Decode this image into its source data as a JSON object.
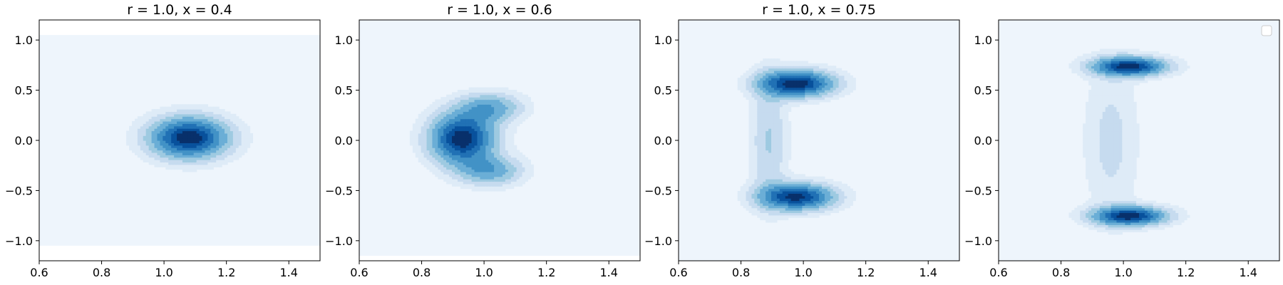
{
  "chart_data": [
    {
      "type": "contour",
      "title": "r = 1.0, x = 0.4",
      "xlabel": "",
      "ylabel": "",
      "xlim": [
        0.6,
        1.5
      ],
      "ylim": [
        -1.2,
        1.2
      ],
      "x_ticks": [
        "0.6",
        "0.8",
        "1.0",
        "1.2",
        "1.4"
      ],
      "y_ticks": [
        "−1.0",
        "−0.5",
        "0.0",
        "0.5",
        "1.0"
      ],
      "colormap": "Blues",
      "peaks": [
        {
          "x": 1.08,
          "y": 0.03,
          "sx": 0.085,
          "sy": 0.14,
          "amp": 1.0
        }
      ],
      "background_region": {
        "x": [
          0.6,
          1.5
        ],
        "y": [
          -1.05,
          1.05
        ]
      },
      "legend": false
    },
    {
      "type": "contour",
      "title": "r = 1.0, x = 0.6",
      "xlabel": "",
      "ylabel": "",
      "xlim": [
        0.6,
        1.5
      ],
      "ylim": [
        -1.2,
        1.2
      ],
      "x_ticks": [
        "0.6",
        "0.8",
        "1.0",
        "1.2",
        "1.4"
      ],
      "y_ticks": [
        "−1.0",
        "−0.5",
        "0.0",
        "0.5",
        "1.0"
      ],
      "colormap": "Blues",
      "peaks": [
        {
          "x": 0.93,
          "y": 0.02,
          "sx": 0.07,
          "sy": 0.17,
          "amp": 1.0
        },
        {
          "x": 1.02,
          "y": 0.33,
          "sx": 0.07,
          "sy": 0.1,
          "amp": 0.45
        },
        {
          "x": 1.02,
          "y": -0.3,
          "sx": 0.07,
          "sy": 0.1,
          "amp": 0.45
        }
      ],
      "background_region": {
        "x": [
          0.6,
          1.5
        ],
        "y": [
          -1.15,
          1.2
        ]
      },
      "legend": false
    },
    {
      "type": "contour",
      "title": "r = 1.0, x = 0.75",
      "xlabel": "",
      "ylabel": "",
      "xlim": [
        0.6,
        1.5
      ],
      "ylim": [
        -1.2,
        1.2
      ],
      "x_ticks": [
        "0.6",
        "0.8",
        "1.0",
        "1.2",
        "1.4"
      ],
      "y_ticks": [
        "−1.0",
        "−0.5",
        "0.0",
        "0.5",
        "1.0"
      ],
      "colormap": "Blues",
      "peaks": [
        {
          "x": 0.98,
          "y": 0.57,
          "sx": 0.08,
          "sy": 0.09,
          "amp": 1.0
        },
        {
          "x": 0.98,
          "y": -0.56,
          "sx": 0.08,
          "sy": 0.09,
          "amp": 0.95
        },
        {
          "x": 0.89,
          "y": 0.0,
          "sx": 0.04,
          "sy": 0.45,
          "amp": 0.25
        }
      ],
      "background_region": {
        "x": [
          0.6,
          1.5
        ],
        "y": [
          -1.2,
          1.2
        ]
      },
      "legend": false
    },
    {
      "type": "contour",
      "title": "",
      "xlabel": "",
      "ylabel": "",
      "xlim": [
        0.6,
        1.5
      ],
      "ylim": [
        -1.2,
        1.2
      ],
      "x_ticks": [
        "0.6",
        "0.8",
        "1.0",
        "1.2",
        "1.4"
      ],
      "y_ticks": [
        "−1.0",
        "−0.5",
        "0.0",
        "0.5",
        "1.0"
      ],
      "colormap": "Blues",
      "peaks": [
        {
          "x": 1.02,
          "y": 0.74,
          "sx": 0.08,
          "sy": 0.065,
          "amp": 1.0
        },
        {
          "x": 1.02,
          "y": -0.75,
          "sx": 0.08,
          "sy": 0.065,
          "amp": 1.0
        },
        {
          "x": 0.96,
          "y": 0.0,
          "sx": 0.06,
          "sy": 0.55,
          "amp": 0.18
        }
      ],
      "background_region": {
        "x": [
          0.6,
          1.5
        ],
        "y": [
          -1.2,
          1.2
        ]
      },
      "legend": true
    }
  ],
  "colors": {
    "levels": [
      "#eef5fc",
      "#deebf7",
      "#c6dbef",
      "#9ecae1",
      "#6baed6",
      "#4292c6",
      "#2171b5",
      "#08519c",
      "#08306b"
    ],
    "axes": "#000000",
    "legend_border": "#cccccc"
  }
}
